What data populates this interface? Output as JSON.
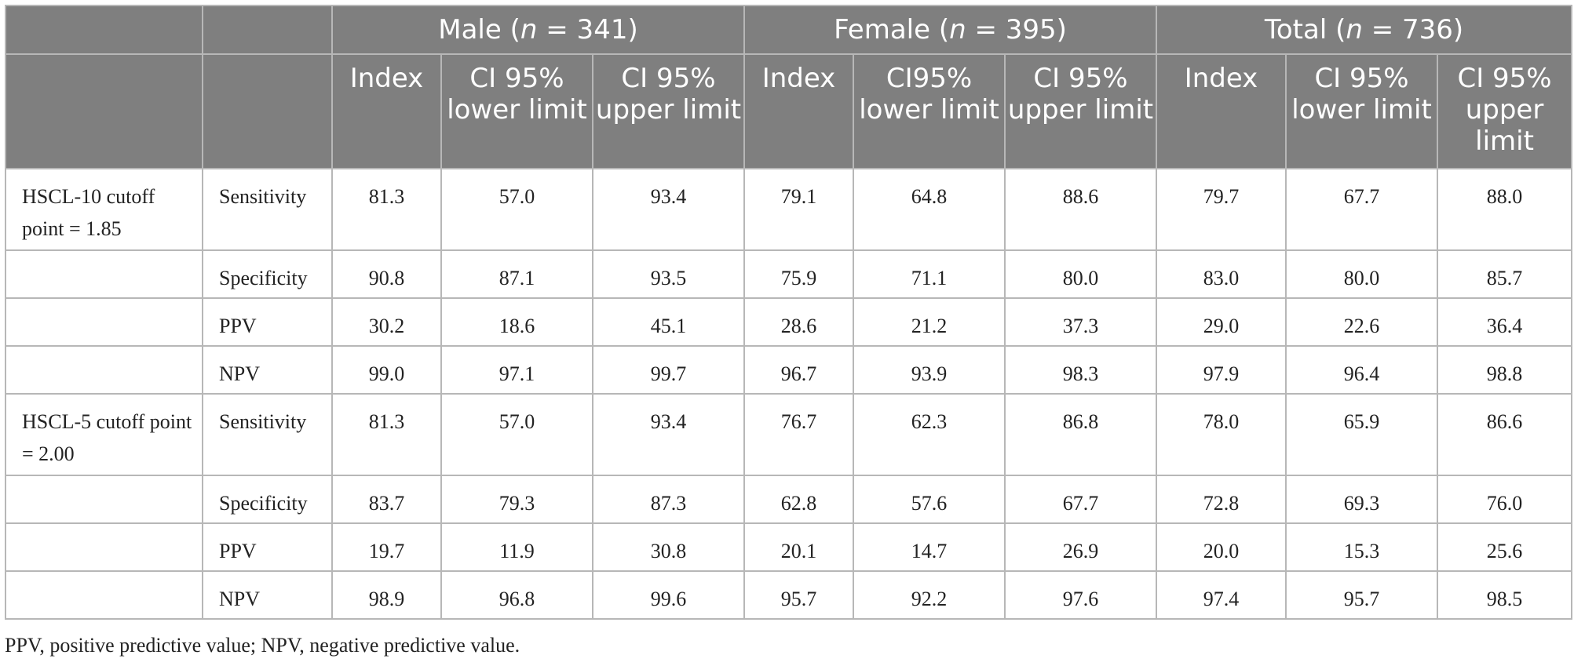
{
  "header": {
    "groups": [
      {
        "label": "Male",
        "n_label": "n",
        "n_value": " = 341"
      },
      {
        "label": "Female",
        "n_label": "n",
        "n_value": " = 395"
      },
      {
        "label": "Total",
        "n_label": "n",
        "n_value": " = 736"
      }
    ],
    "subcols": [
      [
        "Index",
        "CI 95% lower limit",
        "CI 95% upper limit"
      ],
      [
        "Index",
        "CI95% lower limit",
        "CI 95% upper limit"
      ],
      [
        "Index",
        "CI 95% lower limit",
        "CI 95% upper limit"
      ]
    ]
  },
  "rows": [
    {
      "group": "HSCL-10 cutoff point = 1.85",
      "metric": "Sensitivity",
      "values": [
        "81.3",
        "57.0",
        "93.4",
        "79.1",
        "64.8",
        "88.6",
        "79.7",
        "67.7",
        "88.0"
      ]
    },
    {
      "group": "",
      "metric": "Specificity",
      "values": [
        "90.8",
        "87.1",
        "93.5",
        "75.9",
        "71.1",
        "80.0",
        "83.0",
        "80.0",
        "85.7"
      ]
    },
    {
      "group": "",
      "metric": "PPV",
      "values": [
        "30.2",
        "18.6",
        "45.1",
        "28.6",
        "21.2",
        "37.3",
        "29.0",
        "22.6",
        "36.4"
      ]
    },
    {
      "group": "",
      "metric": "NPV",
      "values": [
        "99.0",
        "97.1",
        "99.7",
        "96.7",
        "93.9",
        "98.3",
        "97.9",
        "96.4",
        "98.8"
      ]
    },
    {
      "group": "HSCL-5 cutoff point = 2.00",
      "metric": "Sensitivity",
      "values": [
        "81.3",
        "57.0",
        "93.4",
        "76.7",
        "62.3",
        "86.8",
        "78.0",
        "65.9",
        "86.6"
      ]
    },
    {
      "group": "",
      "metric": "Specificity",
      "values": [
        "83.7",
        "79.3",
        "87.3",
        "62.8",
        "57.6",
        "67.7",
        "72.8",
        "69.3",
        "76.0"
      ]
    },
    {
      "group": "",
      "metric": "PPV",
      "values": [
        "19.7",
        "11.9",
        "30.8",
        "20.1",
        "14.7",
        "26.9",
        "20.0",
        "15.3",
        "25.6"
      ]
    },
    {
      "group": "",
      "metric": "NPV",
      "values": [
        "98.9",
        "96.8",
        "99.6",
        "95.7",
        "92.2",
        "97.6",
        "97.4",
        "95.7",
        "98.5"
      ]
    }
  ],
  "footnote": "PPV, positive predictive value; NPV, negative predictive value."
}
